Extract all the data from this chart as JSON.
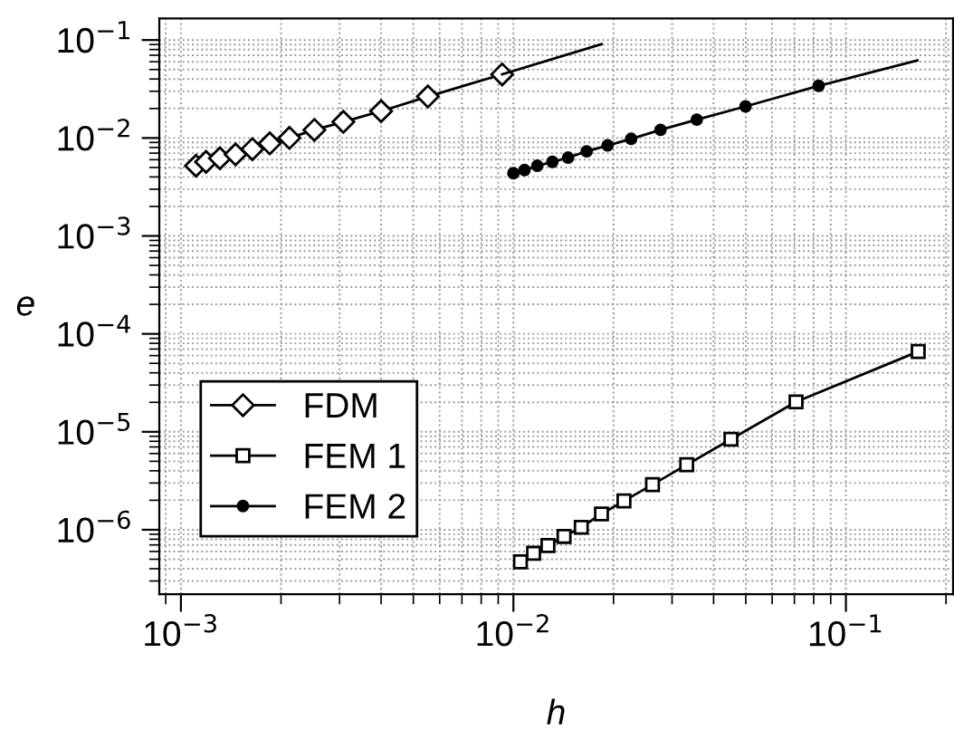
{
  "chart_data": {
    "type": "line",
    "xlabel": "h",
    "ylabel": "e",
    "log": "xy",
    "grid": true,
    "legend": "bottom left",
    "xlim": [
      0.000861,
      0.21
    ],
    "ylim": [
      2.2e-07,
      0.166
    ],
    "xticks": [
      {
        "value": 0.001,
        "label": "10$^{−3}$"
      },
      {
        "value": 0.01,
        "label": "10$^{−2}$"
      },
      {
        "value": 0.1,
        "label": "10$^{−1}$"
      }
    ],
    "yticks": [
      {
        "value": 1e-06,
        "label": "10$^{−6}$"
      },
      {
        "value": 1e-05,
        "label": "10$^{−5}$"
      },
      {
        "value": 0.0001,
        "label": "10$^{−4}$"
      },
      {
        "value": 0.001,
        "label": "10$^{−3}$"
      },
      {
        "value": 0.01,
        "label": "10$^{−2}$"
      },
      {
        "value": 0.1,
        "label": "10$^{−1}$"
      }
    ],
    "series": [
      {
        "name": "FDM",
        "color": "#000000",
        "marker": "diamond",
        "x": [
          0.00111,
          0.00119,
          0.00131,
          0.00146,
          0.00164,
          0.00185,
          0.00212,
          0.00252,
          0.00308,
          0.004,
          0.00553,
          0.00925
        ],
        "values": [
          0.0052,
          0.0057,
          0.0062,
          0.0068,
          0.0077,
          0.0088,
          0.01,
          0.0121,
          0.0146,
          0.0188,
          0.0265,
          0.0446
        ]
      },
      {
        "color": "#000000",
        "marker": "none",
        "x": [
          0.00925,
          0.0184
        ],
        "values": [
          0.0446,
          0.0907
        ]
      },
      {
        "name": "FEM 1",
        "color": "#000000",
        "marker": "square",
        "x": [
          0.0105,
          0.0115,
          0.0127,
          0.0142,
          0.016,
          0.0184,
          0.0215,
          0.0262,
          0.0332,
          0.0451,
          0.0708,
          0.165
        ],
        "values": [
          4.7e-07,
          5.75e-07,
          6.9e-07,
          8.55e-07,
          1.06e-06,
          1.45e-06,
          1.97e-06,
          2.89e-06,
          4.61e-06,
          8.4e-06,
          2.02e-05,
          6.6e-05
        ]
      },
      {
        "name": "FEM 2",
        "color": "#000000",
        "marker": "circle",
        "x": [
          0.01,
          0.0108,
          0.0118,
          0.0131,
          0.0146,
          0.0166,
          0.0192,
          0.0226,
          0.0277,
          0.0356,
          0.0499,
          0.0828
        ],
        "values": [
          0.00437,
          0.0047,
          0.0052,
          0.0057,
          0.0063,
          0.0073,
          0.0084,
          0.0098,
          0.0121,
          0.0154,
          0.021,
          0.0341
        ]
      },
      {
        "color": "#000000",
        "marker": "none",
        "x": [
          0.0828,
          0.164
        ],
        "values": [
          0.0341,
          0.0619
        ]
      }
    ]
  }
}
